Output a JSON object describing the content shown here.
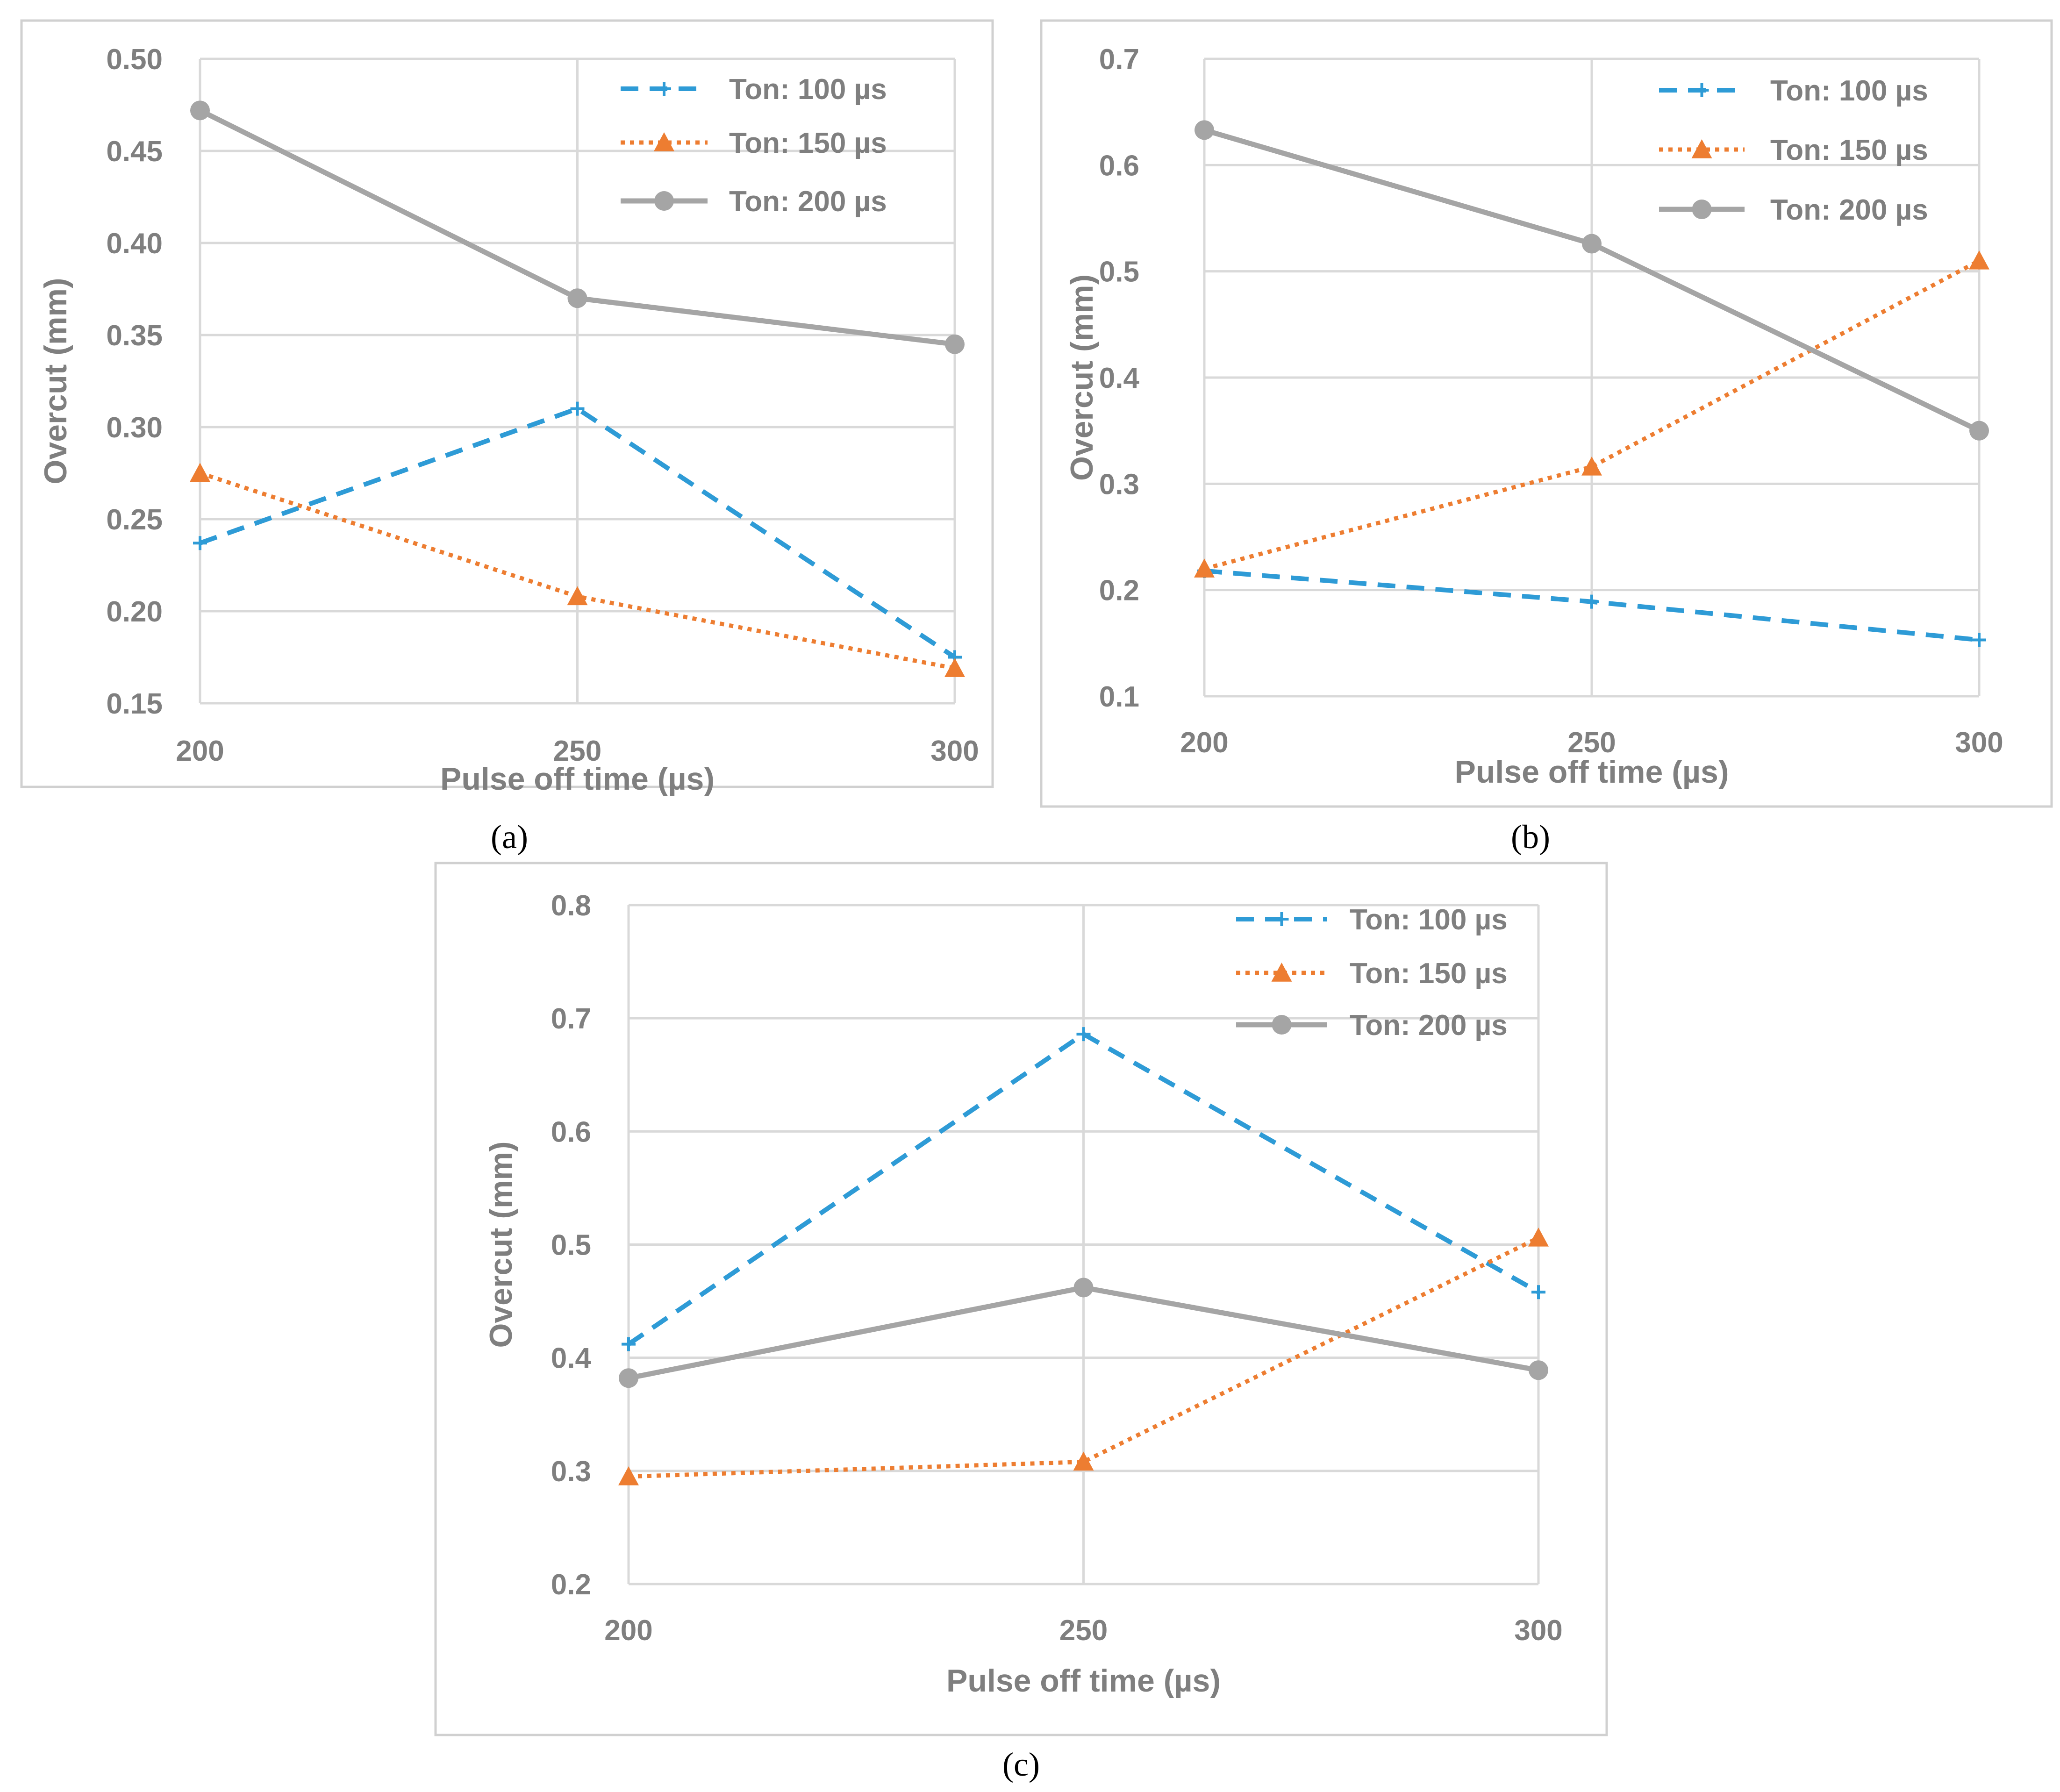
{
  "colors": {
    "series_100": "#2e9bd6",
    "series_150": "#ed7d31",
    "series_200": "#a5a5a5",
    "axis_text": "#7f7f7f",
    "grid": "#d9d9d9",
    "frame": "#d0d0d0"
  },
  "chart_data": [
    {
      "type": "line",
      "caption": "(a)",
      "xlabel": "Pulse off time (µs)",
      "ylabel": "Overcut (mm)",
      "categories": [
        "200",
        "250",
        "300"
      ],
      "x": [
        200,
        250,
        300
      ],
      "ylim": [
        0.15,
        0.5
      ],
      "yticks": [
        "0.15",
        "0.20",
        "0.25",
        "0.30",
        "0.35",
        "0.40",
        "0.45",
        "0.50"
      ],
      "ytick_values": [
        0.15,
        0.2,
        0.25,
        0.3,
        0.35,
        0.4,
        0.45,
        0.5
      ],
      "grid": true,
      "legend_position": "top-right",
      "series": [
        {
          "name": "Ton: 100 µs",
          "style": "dashed",
          "marker": "plus",
          "values": [
            0.237,
            0.31,
            0.175
          ]
        },
        {
          "name": "Ton: 150 µs",
          "style": "dotted",
          "marker": "triangle",
          "values": [
            0.275,
            0.208,
            0.169
          ]
        },
        {
          "name": "Ton: 200 µs",
          "style": "solid",
          "marker": "circle",
          "values": [
            0.472,
            0.37,
            0.345
          ]
        }
      ]
    },
    {
      "type": "line",
      "caption": "(b)",
      "xlabel": "Pulse off time (µs)",
      "ylabel": "Overcut (mm)",
      "categories": [
        "200",
        "250",
        "300"
      ],
      "x": [
        200,
        250,
        300
      ],
      "ylim": [
        0.1,
        0.7
      ],
      "yticks": [
        "0.1",
        "0.2",
        "0.3",
        "0.4",
        "0.5",
        "0.6",
        "0.7"
      ],
      "ytick_values": [
        0.1,
        0.2,
        0.3,
        0.4,
        0.5,
        0.6,
        0.7
      ],
      "grid": true,
      "legend_position": "top-right",
      "series": [
        {
          "name": "Ton: 100 µs",
          "style": "dashed",
          "marker": "plus",
          "values": [
            0.218,
            0.189,
            0.153
          ]
        },
        {
          "name": "Ton: 150 µs",
          "style": "dotted",
          "marker": "triangle",
          "values": [
            0.22,
            0.316,
            0.51
          ]
        },
        {
          "name": "Ton: 200 µs",
          "style": "solid",
          "marker": "circle",
          "values": [
            0.633,
            0.526,
            0.35
          ]
        }
      ]
    },
    {
      "type": "line",
      "caption": "(c)",
      "xlabel": "Pulse off time (µs)",
      "ylabel": "Overcut (mm)",
      "categories": [
        "200",
        "250",
        "300"
      ],
      "x": [
        200,
        250,
        300
      ],
      "ylim": [
        0.2,
        0.8
      ],
      "yticks": [
        "0.2",
        "0.3",
        "0.4",
        "0.5",
        "0.6",
        "0.7",
        "0.8"
      ],
      "ytick_values": [
        0.2,
        0.3,
        0.4,
        0.5,
        0.6,
        0.7,
        0.8
      ],
      "grid": true,
      "legend_position": "top-right",
      "series": [
        {
          "name": "Ton: 100 µs",
          "style": "dashed",
          "marker": "plus",
          "values": [
            0.412,
            0.686,
            0.458
          ]
        },
        {
          "name": "Ton: 150 µs",
          "style": "dotted",
          "marker": "triangle",
          "values": [
            0.295,
            0.308,
            0.506
          ]
        },
        {
          "name": "Ton: 200 µs",
          "style": "solid",
          "marker": "circle",
          "values": [
            0.382,
            0.462,
            0.389
          ]
        }
      ]
    }
  ]
}
